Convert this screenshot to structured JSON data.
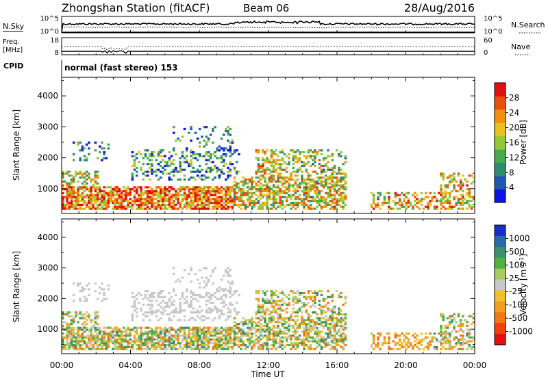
{
  "header": {
    "station": "Zhongshan Station (fitACF)",
    "beam": "Beam 06",
    "date": "28/Aug/2016"
  },
  "top_panels": {
    "nsky_label": "N.Sky",
    "nsky_ticks": [
      "10^5",
      "10^0"
    ],
    "nsearch_label": "N.Search",
    "nsearch_ticks": [
      "10^5",
      "10^0"
    ],
    "freq_label": "Freq.",
    "freq_unit": "[MHz]",
    "freq_ticks": [
      "18",
      "8"
    ],
    "nave_label": "Nave",
    "nave_ticks": [
      "60",
      "0"
    ],
    "cpid_label": "CPID",
    "cpid_value": "normal (fast stereo) 153"
  },
  "chart_data": [
    {
      "type": "heatmap",
      "name": "power-panel",
      "ylabel": "Slant Range [km]",
      "yticks": [
        1000,
        2000,
        3000,
        4000
      ],
      "ylim": [
        200,
        4600
      ],
      "xlabel": "Time UT",
      "xticks": [
        "00:00",
        "04:00",
        "08:00",
        "12:00",
        "16:00",
        "20:00",
        "00:00"
      ],
      "xlim_hours": [
        0,
        24
      ],
      "colorbar": {
        "label": "Power [dB]",
        "ticks": [
          "4",
          "8",
          "12",
          "16",
          "20",
          "24",
          "28"
        ],
        "colors": [
          "#1010e8",
          "#2058b0",
          "#2c8c70",
          "#48a850",
          "#90c838",
          "#e8c020",
          "#f09010",
          "#e85010",
          "#e01010"
        ]
      }
    },
    {
      "type": "heatmap",
      "name": "velocity-panel",
      "ylabel": "Slant Range [km]",
      "yticks": [
        1000,
        2000,
        3000,
        4000
      ],
      "ylim": [
        200,
        4600
      ],
      "xlabel": "Time UT",
      "xticks": [
        "00:00",
        "04:00",
        "08:00",
        "12:00",
        "16:00",
        "20:00",
        "00:00"
      ],
      "xlim_hours": [
        0,
        24
      ],
      "colorbar": {
        "label": "Velocity [m s",
        "label_sup": "-1",
        "label_end": "]",
        "ticks": [
          "1000",
          "500",
          "100",
          "25",
          "-25",
          "-100",
          "-500",
          "-1000"
        ],
        "colors": [
          "#1830c8",
          "#2a6aa8",
          "#3a9070",
          "#50b040",
          "#a8cc60",
          "#c8c8c8",
          "#f0c030",
          "#f0a020",
          "#f07818",
          "#f04010",
          "#e01010"
        ]
      }
    }
  ]
}
